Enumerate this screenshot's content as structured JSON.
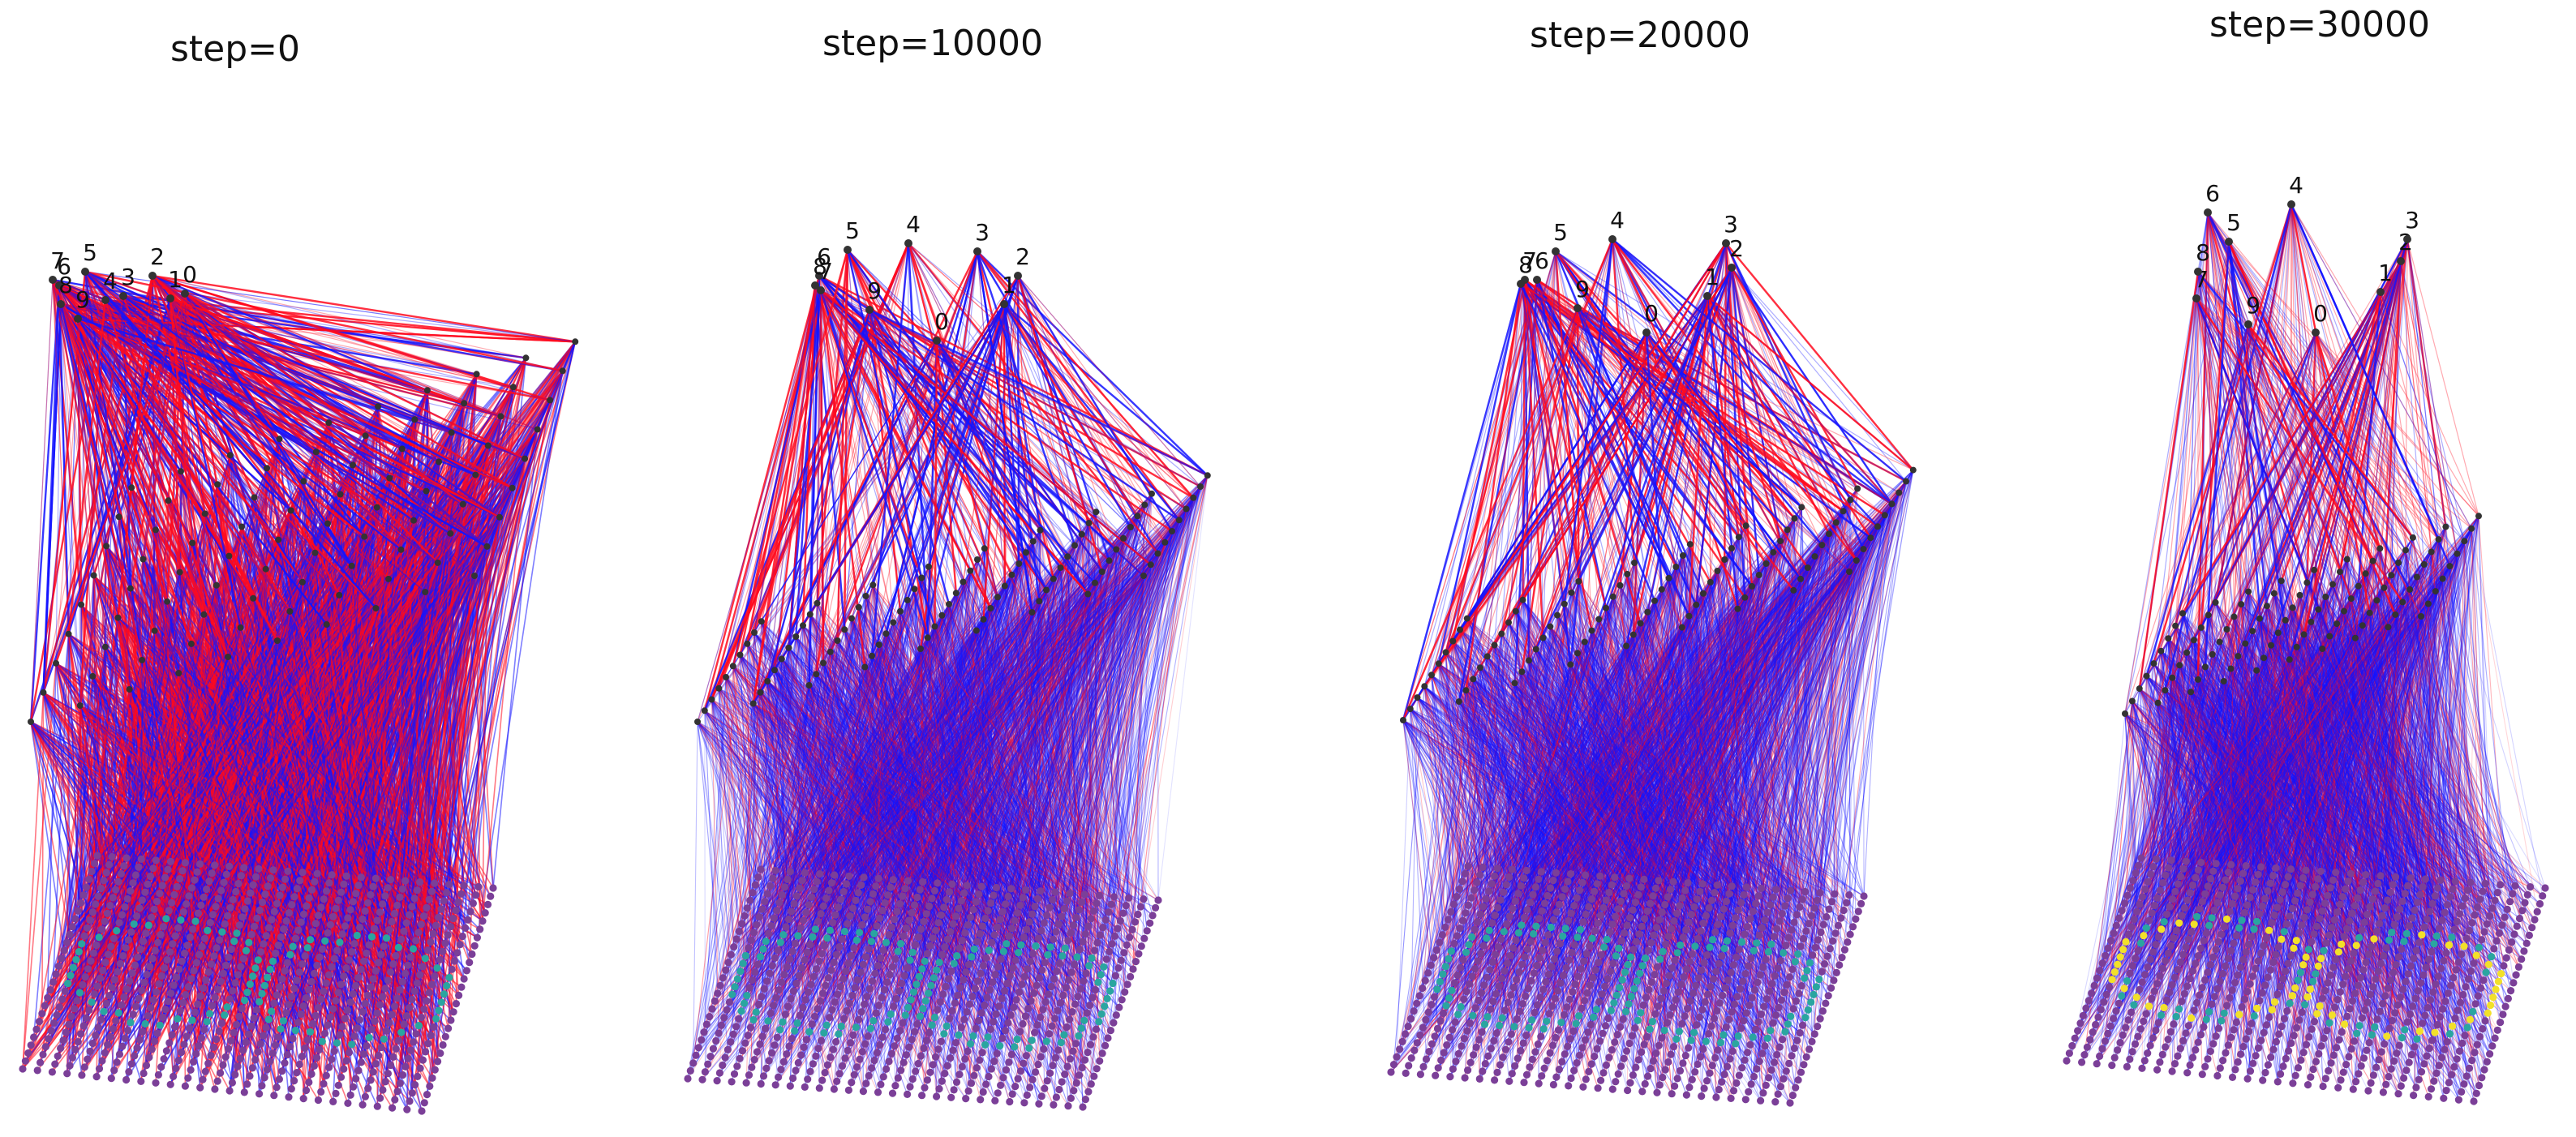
{
  "figure": {
    "panels": [
      {
        "title": "step=0",
        "phase": 0
      },
      {
        "title": "step=10000",
        "phase": 1
      },
      {
        "title": "step=20000",
        "phase": 2
      },
      {
        "title": "step=30000",
        "phase": 3
      }
    ],
    "output_labels": [
      "0",
      "1",
      "2",
      "3",
      "4",
      "5",
      "6",
      "7",
      "8",
      "9"
    ],
    "input_pattern": "infinity",
    "colors": {
      "positive_edge": "#ff0a1e",
      "negative_edge": "#1414ff",
      "node": "#333333",
      "input_node_low": "#7b3f98",
      "input_node_mid": "#2aa5a0",
      "input_node_high": "#f2e02a"
    }
  }
}
